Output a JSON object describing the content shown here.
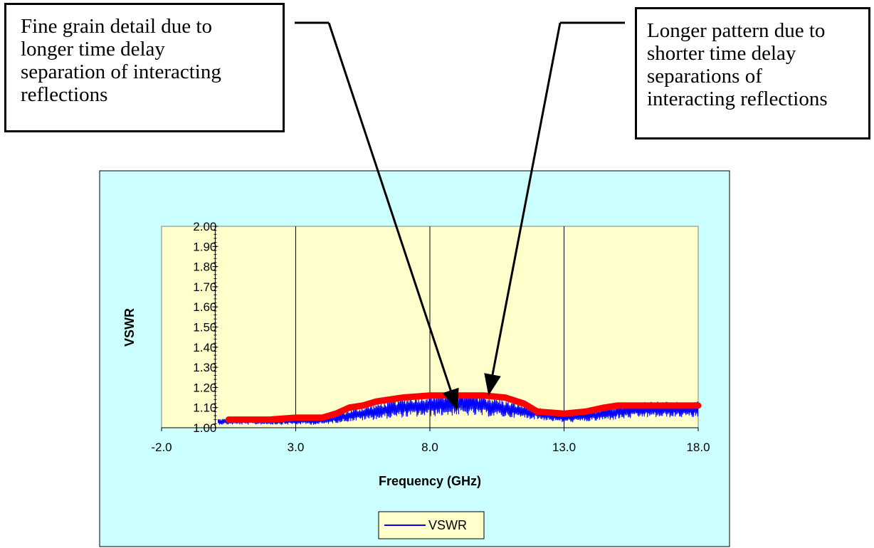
{
  "callouts": {
    "left": {
      "lines": [
        "Fine grain detail due to",
        "longer time delay",
        "separation of interacting",
        "reflections"
      ]
    },
    "right": {
      "lines": [
        "Longer pattern due to",
        "shorter time delay",
        "separations of",
        "interacting reflections"
      ]
    }
  },
  "colors": {
    "chart_area": "#ccffff",
    "plot_area": "#ffffcc",
    "vswr_line": "#0000ff",
    "trend_line": "#ff0000",
    "arrows": "#000000"
  },
  "chart_data": {
    "type": "line",
    "xlabel": "Frequency (GHz)",
    "ylabel": "VSWR",
    "xlim": [
      -2.0,
      18.0
    ],
    "ylim": [
      1.0,
      2.0
    ],
    "x_ticks": [
      -2.0,
      3.0,
      8.0,
      13.0,
      18.0
    ],
    "x_tick_labels": [
      "-2.0",
      "3.0",
      "8.0",
      "13.0",
      "18.0"
    ],
    "y_ticks": [
      1.0,
      1.1,
      1.2,
      1.3,
      1.4,
      1.5,
      1.6,
      1.7,
      1.8,
      1.9,
      2.0
    ],
    "y_tick_labels": [
      "1.00",
      "1.10",
      "1.20",
      "1.30",
      "1.40",
      "1.50",
      "1.60",
      "1.70",
      "1.80",
      "1.90",
      "2.00"
    ],
    "grid": "vertical",
    "legend": {
      "position": "bottom",
      "entries": [
        "VSWR"
      ]
    },
    "series": [
      {
        "name": "VSWR",
        "style": "noisy",
        "x_range": [
          0.1,
          18.0
        ],
        "envelope": {
          "x": [
            0.1,
            4.0,
            5.0,
            6.0,
            7.0,
            8.0,
            9.0,
            10.0,
            11.0,
            12.0,
            13.0,
            14.0,
            15.0,
            16.0,
            17.0,
            18.0
          ],
          "mean": [
            1.03,
            1.035,
            1.06,
            1.08,
            1.1,
            1.11,
            1.12,
            1.11,
            1.09,
            1.07,
            1.05,
            1.06,
            1.08,
            1.09,
            1.09,
            1.09
          ],
          "amplitude": [
            0.015,
            0.02,
            0.03,
            0.04,
            0.05,
            0.055,
            0.06,
            0.055,
            0.04,
            0.03,
            0.025,
            0.03,
            0.04,
            0.04,
            0.04,
            0.04
          ]
        }
      },
      {
        "name": "",
        "style": "trend",
        "x": [
          0.5,
          2.0,
          3.0,
          4.0,
          4.5,
          5.0,
          5.5,
          6.0,
          7.0,
          8.0,
          9.0,
          10.0,
          10.8,
          11.5,
          12.0,
          13.0,
          13.8,
          14.5,
          15.0,
          16.0,
          17.0,
          18.0
        ],
        "y": [
          1.04,
          1.04,
          1.05,
          1.05,
          1.07,
          1.1,
          1.11,
          1.13,
          1.15,
          1.16,
          1.16,
          1.16,
          1.15,
          1.12,
          1.08,
          1.07,
          1.08,
          1.1,
          1.11,
          1.11,
          1.11,
          1.11
        ]
      }
    ],
    "arrows": [
      {
        "from_callout": "left",
        "to": {
          "x": 9.0,
          "y": 1.095
        }
      },
      {
        "from_callout": "right",
        "to": {
          "x": 10.2,
          "y": 1.17
        }
      }
    ]
  }
}
